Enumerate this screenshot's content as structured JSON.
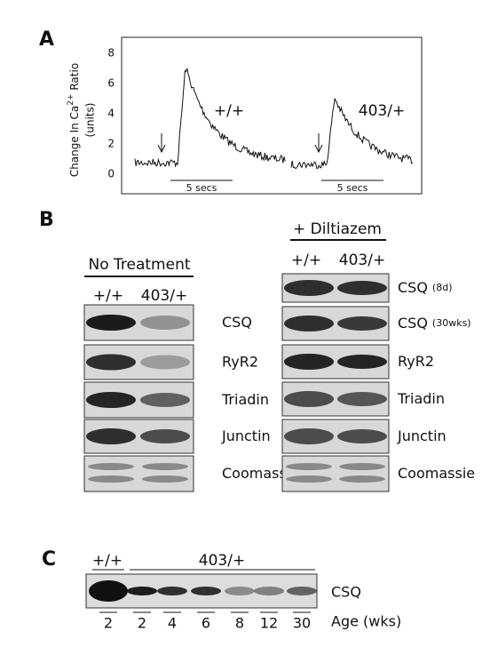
{
  "panel_a": {
    "label": "A",
    "y_axis_label": {
      "line1_pre": "Change In Ca",
      "superscript": "2+",
      "line1_post": " Ratio",
      "line2": "(units)"
    },
    "yticks": [
      0,
      2,
      4,
      6,
      8
    ],
    "traces": [
      {
        "label": "+/+",
        "scale_bar": "5 secs"
      },
      {
        "label": "403/+",
        "scale_bar": "5 secs"
      }
    ]
  },
  "panel_b": {
    "label": "B",
    "no_treatment": {
      "title": "No Treatment",
      "columns": [
        "+/+",
        "403/+"
      ],
      "rows": [
        {
          "name": "CSQ"
        },
        {
          "name": "RyR2"
        },
        {
          "name": "Triadin"
        },
        {
          "name": "Junctin"
        },
        {
          "name": "Coomassie"
        }
      ]
    },
    "diltiazem": {
      "title": "+ Diltiazem",
      "columns": [
        "+/+",
        "403/+"
      ],
      "rows": [
        {
          "name": "CSQ",
          "note": "(8d)"
        },
        {
          "name": "CSQ",
          "note": "(30wks)"
        },
        {
          "name": "RyR2"
        },
        {
          "name": "Triadin"
        },
        {
          "name": "Junctin"
        },
        {
          "name": "Coomassie"
        }
      ]
    }
  },
  "panel_c": {
    "label": "C",
    "groups": [
      "+/+",
      "403/+"
    ],
    "lanes": [
      2,
      2,
      4,
      6,
      8,
      12,
      30
    ],
    "band_label": "CSQ",
    "axis_label": "Age (wks)"
  }
}
